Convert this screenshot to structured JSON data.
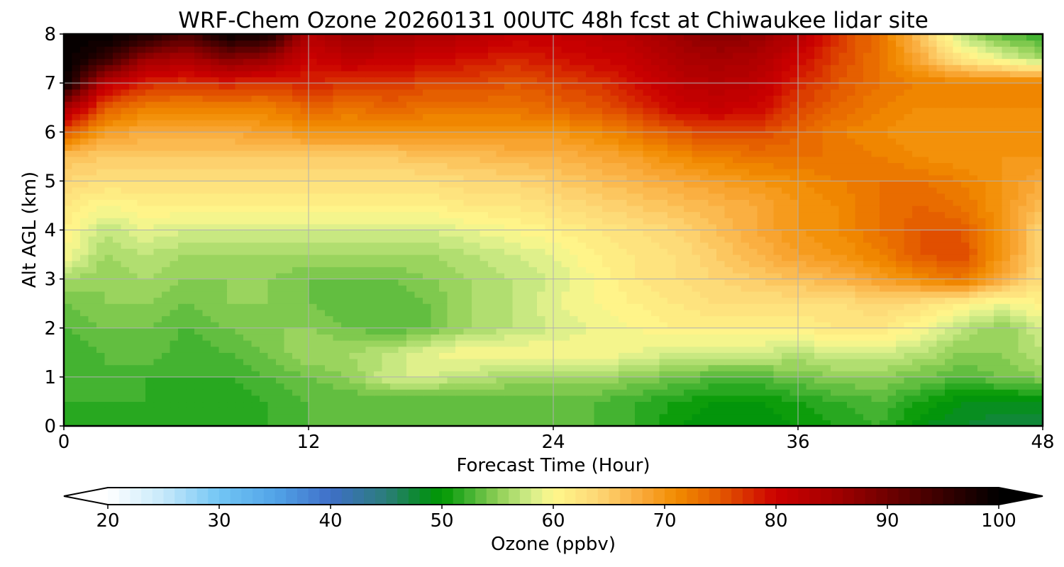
{
  "chart_data": {
    "type": "heatmap",
    "title": "WRF-Chem Ozone  20260131 00UTC 48h fcst at Chiwaukee lidar site",
    "xlabel": "Forecast Time (Hour)",
    "ylabel": "Alt AGL (km)",
    "xlim": [
      0,
      48
    ],
    "ylim": [
      0,
      8
    ],
    "x_ticks": [
      0,
      12,
      24,
      36,
      48
    ],
    "y_ticks": [
      0,
      1,
      2,
      3,
      4,
      5,
      6,
      7,
      8
    ],
    "grid": true,
    "x": [
      0,
      2,
      4,
      6,
      8,
      10,
      12,
      14,
      16,
      18,
      20,
      22,
      24,
      26,
      28,
      30,
      32,
      34,
      36,
      38,
      40,
      42,
      44,
      46,
      48
    ],
    "y": [
      0,
      0.5,
      1,
      1.5,
      2,
      2.5,
      3,
      3.5,
      4,
      4.5,
      5,
      5.5,
      6,
      6.5,
      7,
      7.5,
      8
    ],
    "z": [
      [
        51,
        52,
        51,
        51,
        51,
        52,
        53,
        53,
        53,
        53,
        53,
        53,
        53,
        53,
        52,
        50,
        49,
        49,
        50,
        51,
        52,
        49,
        48,
        47,
        47
      ],
      [
        52,
        52,
        52,
        51,
        51,
        52,
        53,
        53,
        53,
        53,
        53,
        53,
        53,
        53,
        52,
        51,
        50,
        50,
        51,
        52,
        53,
        51,
        49,
        49,
        49
      ],
      [
        52,
        53,
        52,
        52,
        52,
        53,
        54,
        55,
        58,
        58,
        57,
        56,
        56,
        56,
        55,
        54,
        53,
        53,
        54,
        55,
        55,
        54,
        53,
        54,
        55
      ],
      [
        52,
        53,
        54,
        52,
        53,
        54,
        56,
        56,
        57,
        59,
        60,
        60,
        60,
        60,
        59,
        58,
        58,
        58,
        57,
        58,
        58,
        57,
        55,
        55,
        57
      ],
      [
        53,
        54,
        54,
        53,
        54,
        55,
        55,
        54,
        53,
        54,
        56,
        57,
        58,
        59,
        60,
        61,
        61,
        61,
        61,
        62,
        62,
        60,
        57,
        55,
        58
      ],
      [
        54,
        55,
        55,
        54,
        55,
        55,
        54,
        53,
        53,
        54,
        56,
        57,
        59,
        60,
        61,
        62,
        63,
        63,
        63,
        63,
        64,
        63,
        61,
        59,
        61
      ],
      [
        56,
        55,
        56,
        55,
        55,
        55,
        54,
        54,
        54,
        55,
        56,
        57,
        58,
        60,
        62,
        63,
        64,
        65,
        66,
        67,
        69,
        71,
        73,
        68,
        63
      ],
      [
        60,
        56,
        57,
        56,
        56,
        56,
        56,
        56,
        56,
        56,
        57,
        58,
        59,
        61,
        62,
        63,
        65,
        67,
        69,
        70,
        72,
        75,
        76,
        70,
        64
      ],
      [
        61,
        57,
        59,
        58,
        58,
        58,
        58,
        58,
        58,
        58,
        59,
        60,
        61,
        62,
        63,
        64,
        66,
        68,
        70,
        71,
        73,
        75,
        75,
        70,
        64
      ],
      [
        62,
        60,
        61,
        61,
        61,
        61,
        61,
        61,
        61,
        61,
        62,
        62,
        63,
        64,
        65,
        66,
        67,
        68,
        70,
        71,
        73,
        74,
        73,
        70,
        66
      ],
      [
        64,
        63,
        63,
        63,
        63,
        63,
        63,
        63,
        63,
        63,
        64,
        64,
        65,
        66,
        67,
        68,
        69,
        70,
        71,
        72,
        73,
        73,
        72,
        70,
        68
      ],
      [
        66,
        65,
        65,
        65,
        65,
        65,
        65,
        65,
        65,
        66,
        66,
        67,
        67,
        68,
        69,
        71,
        72,
        73,
        73,
        73,
        72,
        71,
        70,
        70,
        70
      ],
      [
        75,
        69,
        68,
        68,
        68,
        69,
        70,
        70,
        70,
        70,
        70,
        70,
        70,
        71,
        73,
        75,
        76,
        76,
        74,
        72,
        71,
        70,
        70,
        70,
        70
      ],
      [
        85,
        75,
        72,
        72,
        72,
        72,
        74,
        73,
        74,
        73,
        73,
        73,
        74,
        75,
        77,
        80,
        81,
        80,
        76,
        74,
        72,
        71,
        71,
        71,
        71
      ],
      [
        100,
        82,
        78,
        77,
        78,
        77,
        78,
        77,
        77,
        76,
        76,
        75,
        76,
        77,
        79,
        82,
        83,
        82,
        78,
        75,
        73,
        72,
        72,
        72,
        72
      ],
      [
        100,
        96,
        86,
        84,
        88,
        86,
        80,
        82,
        81,
        80,
        79,
        78,
        79,
        80,
        81,
        84,
        85,
        84,
        80,
        76,
        73,
        68,
        62,
        59,
        56
      ],
      [
        100,
        100,
        98,
        93,
        100,
        98,
        83,
        86,
        85,
        84,
        83,
        81,
        81,
        82,
        83,
        86,
        88,
        87,
        83,
        77,
        73,
        66,
        57,
        53,
        52
      ]
    ],
    "colorbar": {
      "label": "Ozone  (ppbv)",
      "min": 20,
      "max": 100,
      "ticks": [
        20,
        30,
        40,
        50,
        60,
        70,
        80,
        90,
        100
      ],
      "extend": "both",
      "colormap": [
        {
          "v": 20,
          "c": "#ffffff"
        },
        {
          "v": 25,
          "c": "#c6e9fb"
        },
        {
          "v": 30,
          "c": "#72c5f4"
        },
        {
          "v": 35,
          "c": "#52a4e8"
        },
        {
          "v": 40,
          "c": "#3f6fc8"
        },
        {
          "v": 45,
          "c": "#2b7d7a"
        },
        {
          "v": 48,
          "c": "#0a8a2a"
        },
        {
          "v": 50,
          "c": "#009800"
        },
        {
          "v": 52,
          "c": "#35ad2a"
        },
        {
          "v": 55,
          "c": "#8ecf55"
        },
        {
          "v": 58,
          "c": "#d4ed8a"
        },
        {
          "v": 60,
          "c": "#fff88c"
        },
        {
          "v": 64,
          "c": "#fdd775"
        },
        {
          "v": 68,
          "c": "#f9a93a"
        },
        {
          "v": 71,
          "c": "#f28c00"
        },
        {
          "v": 75,
          "c": "#e35800"
        },
        {
          "v": 80,
          "c": "#cc0000"
        },
        {
          "v": 85,
          "c": "#a60000"
        },
        {
          "v": 90,
          "c": "#700000"
        },
        {
          "v": 95,
          "c": "#380000"
        },
        {
          "v": 100,
          "c": "#000000"
        }
      ]
    }
  }
}
